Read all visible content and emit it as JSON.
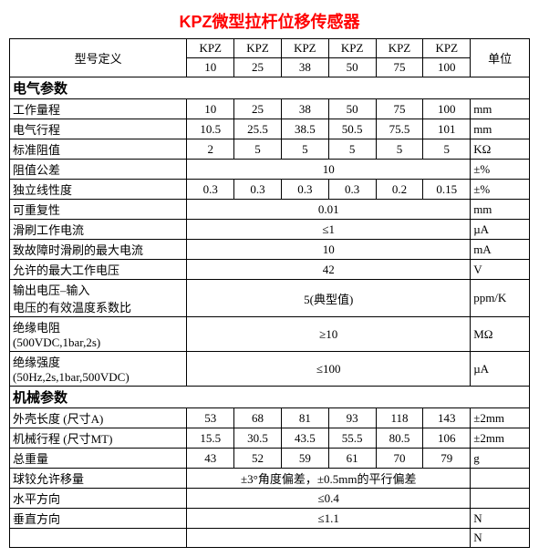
{
  "title": "KPZ微型拉杆位移传感器",
  "header": {
    "model_def": "型号定义",
    "models_top": [
      "KPZ",
      "KPZ",
      "KPZ",
      "KPZ",
      "KPZ",
      "KPZ"
    ],
    "models_bot": [
      "10",
      "25",
      "38",
      "50",
      "75",
      "100"
    ],
    "unit": "单位"
  },
  "section_elec": "电气参数",
  "rows_elec": {
    "work_range": {
      "label": "工作量程",
      "vals": [
        "10",
        "25",
        "38",
        "50",
        "75",
        "100"
      ],
      "unit": "mm"
    },
    "elec_travel": {
      "label": "电气行程",
      "vals": [
        "10.5",
        "25.5",
        "38.5",
        "50.5",
        "75.5",
        "101"
      ],
      "unit": "mm"
    },
    "std_res": {
      "label": "标准阻值",
      "vals": [
        "2",
        "5",
        "5",
        "5",
        "5",
        "5"
      ],
      "unit": "KΩ"
    },
    "res_tol": {
      "label": "阻值公差",
      "val": "10",
      "unit": "±%"
    },
    "lin": {
      "label": "独立线性度",
      "vals": [
        "0.3",
        "0.3",
        "0.3",
        "0.3",
        "0.2",
        "0.15"
      ],
      "unit": "±%"
    },
    "repeat": {
      "label": "可重复性",
      "val": "0.01",
      "unit": "mm"
    },
    "brush_i": {
      "label": "滑刷工作电流",
      "val": "≤1",
      "unit": "µA"
    },
    "fault_i": {
      "label": "致故障时滑刷的最大电流",
      "val": "10",
      "unit": "mA"
    },
    "max_v": {
      "label": "允许的最大工作电压",
      "val": "42",
      "unit": "V"
    },
    "temp_coef": {
      "label1": "输出电压–输入",
      "label2": "电压的有效温度系数比",
      "val": "5(典型值)",
      "unit": "ppm/K"
    },
    "ins_res": {
      "label1": "绝缘电阻",
      "label2": "(500VDC,1bar,2s)",
      "val": "≥10",
      "unit": "MΩ"
    },
    "ins_str": {
      "label1": "绝缘强度",
      "label2": "(50Hz,2s,1bar,500VDC)",
      "val": "≤100",
      "unit": "µA"
    }
  },
  "section_mech": "机械参数",
  "rows_mech": {
    "case_len": {
      "label": "外壳长度 (尺寸A)",
      "vals": [
        "53",
        "68",
        "81",
        "93",
        "118",
        "143"
      ],
      "unit": "±2mm"
    },
    "mech_travel": {
      "label": "机械行程 (尺寸MT)",
      "vals": [
        "15.5",
        "30.5",
        "43.5",
        "55.5",
        "80.5",
        "106"
      ],
      "unit": "±2mm"
    },
    "weight": {
      "label": "总重量",
      "vals": [
        "43",
        "52",
        "59",
        "61",
        "70",
        "79"
      ],
      "unit": "g"
    },
    "ball_joint": {
      "label": "球铰允许移量",
      "val": "±3°角度偏差，±0.5mm的平行偏差",
      "unit": ""
    },
    "horiz": {
      "label": "水平方向",
      "val": "≤0.4",
      "unit": ""
    },
    "vert": {
      "label": "垂直方向",
      "val": "≤1.1",
      "unit": "N"
    },
    "last": {
      "label": "",
      "val": "",
      "unit": "N"
    }
  }
}
